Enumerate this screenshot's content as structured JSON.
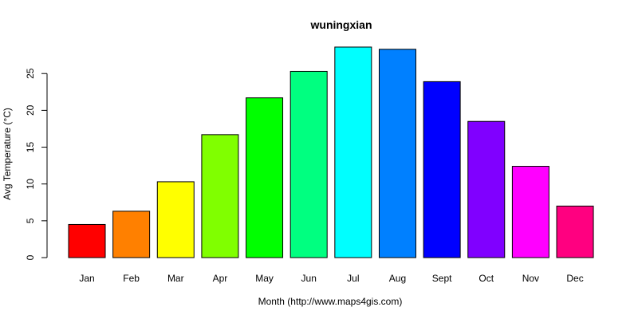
{
  "chart_data": {
    "type": "bar",
    "title": "wuningxian",
    "xlabel": "Month (http://www.maps4gis.com)",
    "ylabel": "Avg Temperature (°C)",
    "categories": [
      "Jan",
      "Feb",
      "Mar",
      "Apr",
      "May",
      "Jun",
      "Jul",
      "Aug",
      "Sept",
      "Oct",
      "Nov",
      "Dec"
    ],
    "values": [
      4.5,
      6.3,
      10.3,
      16.7,
      21.7,
      25.3,
      28.6,
      28.3,
      23.9,
      18.5,
      12.4,
      7.0
    ],
    "colors": [
      "#FF0000",
      "#FF8000",
      "#FFFF00",
      "#80FF00",
      "#00FF00",
      "#00FF80",
      "#00FFFF",
      "#0080FF",
      "#0000FF",
      "#8000FF",
      "#FF00FF",
      "#FF0080"
    ],
    "ylim": [
      0,
      28.6
    ],
    "yticks": [
      0,
      5,
      10,
      15,
      20,
      25
    ],
    "grid": false,
    "legend": "none"
  }
}
